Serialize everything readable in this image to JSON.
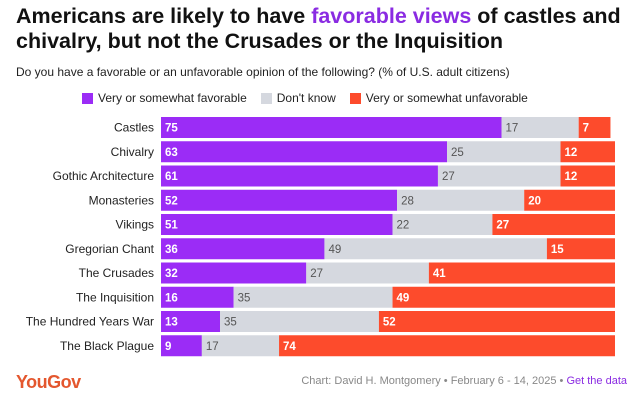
{
  "title": {
    "part1": "Americans are likely to have ",
    "highlight": "favorable views",
    "part2": " of castles and chivalry, but not the Crusades or the Inquisition"
  },
  "subtitle": "Do you have a favorable or an unfavorable opinion of the following? (% of U.S. adult citizens)",
  "colors": {
    "favorable": "#9b2cf6",
    "dont_know": "#d5d8df",
    "unfavorable": "#fd4b2c",
    "highlight": "#8a2be2"
  },
  "legend": [
    {
      "name": "Very or somewhat favorable",
      "color": "#9b2cf6"
    },
    {
      "name": "Don't know",
      "color": "#d5d8df"
    },
    {
      "name": "Very or somewhat unfavorable",
      "color": "#fd4b2c"
    }
  ],
  "chart_data": {
    "type": "bar",
    "orientation": "horizontal",
    "stacked": true,
    "categories": [
      "Castles",
      "Chivalry",
      "Gothic Architecture",
      "Monasteries",
      "Vikings",
      "Gregorian Chant",
      "The Crusades",
      "The Inquisition",
      "The Hundred Years War",
      "The Black Plague"
    ],
    "series": [
      {
        "name": "Very or somewhat favorable",
        "values": [
          75,
          63,
          61,
          52,
          51,
          36,
          32,
          16,
          13,
          9
        ]
      },
      {
        "name": "Don't know",
        "values": [
          17,
          25,
          27,
          28,
          22,
          49,
          27,
          35,
          35,
          17
        ]
      },
      {
        "name": "Very or somewhat unfavorable",
        "values": [
          7,
          12,
          12,
          20,
          27,
          15,
          41,
          49,
          52,
          74
        ]
      }
    ],
    "title": "Americans are likely to have favorable views of castles and chivalry, but not the Crusades or the Inquisition",
    "xlim": [
      0,
      100
    ]
  },
  "footer": {
    "logo": "YouGov",
    "credit": "Chart: David H. Montgomery • February 6 - 14, 2025 • ",
    "link": "Get the data"
  }
}
